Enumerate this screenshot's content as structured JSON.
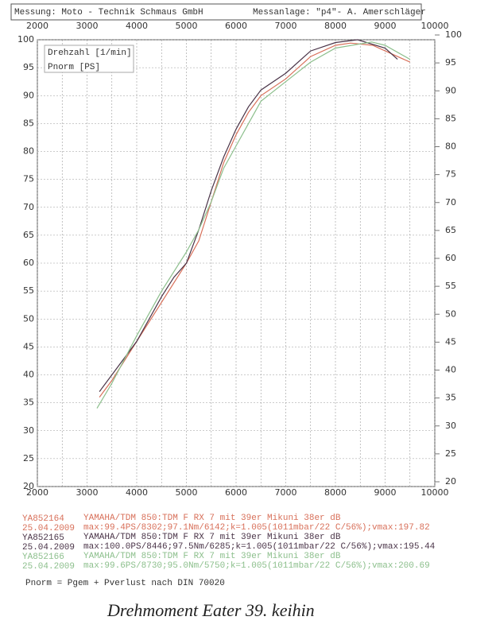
{
  "chart_data": {
    "type": "line",
    "header_left": "Messung: Moto - Technik Schmaus GmbH",
    "header_right": "Messanlage: \"p4\"- A. Amerschläger",
    "x_label": "Drehzahl [1/min]",
    "y_label": "Pnorm [PS]",
    "xlim": [
      2000,
      10000
    ],
    "xticks": [
      2000,
      3000,
      4000,
      5000,
      6000,
      7000,
      8000,
      9000,
      10000
    ],
    "ylim": [
      20,
      100
    ],
    "yticks": [
      20,
      25,
      30,
      35,
      40,
      45,
      50,
      55,
      60,
      65,
      70,
      75,
      80,
      85,
      90,
      95,
      100
    ],
    "y2lim": [
      20,
      100
    ],
    "y2ticks": [
      20,
      25,
      30,
      35,
      40,
      45,
      50,
      55,
      60,
      65,
      70,
      75,
      80,
      85,
      90,
      95,
      100
    ],
    "grid": true,
    "series": [
      {
        "name": "YA852164",
        "date": "25.04.2009",
        "color": "#d8705a",
        "description": "YAMAHA/TDM  850:TDM F RX 7 mit 39er Mikuni 38er dB",
        "stats": "max:99.4PS/8302;97.1Nm/6142;k=1.005(1011mbar/22 C/56%);vmax:197.82",
        "x": [
          3250,
          3500,
          4000,
          4500,
          5000,
          5250,
          5500,
          5750,
          6000,
          6250,
          6500,
          7000,
          7500,
          8000,
          8302,
          8750,
          9250,
          9500
        ],
        "values": [
          36,
          39,
          46,
          53,
          60,
          64,
          71,
          78,
          83,
          87,
          90,
          93,
          97,
          99,
          99.4,
          99,
          97,
          96
        ]
      },
      {
        "name": "YA852165",
        "date": "25.04.2009",
        "color": "#4a3448",
        "description": "YAMAHA/TDM  850:TDM F RX 7 mit 39er Mikuni 38er dB",
        "stats": "max:100.0PS/8446;97.5Nm/6285;k=1.005(1011mbar/22 C/56%);vmax:195.44",
        "x": [
          3250,
          3500,
          4000,
          4500,
          4750,
          5000,
          5250,
          5500,
          5750,
          6000,
          6250,
          6500,
          7000,
          7500,
          8000,
          8446,
          9000,
          9250
        ],
        "values": [
          37,
          40,
          46,
          54,
          57.5,
          60,
          66,
          73,
          79,
          84,
          88,
          91,
          94,
          98,
          99.5,
          100,
          98.5,
          96.5
        ]
      },
      {
        "name": "YA852166",
        "date": "25.04.2009",
        "color": "#8cbf8c",
        "description": "YAMAHA/TDM  850:TDM F RX 7 mit 39er Mikuni 38er dB",
        "stats": "max:99.6PS/8730;95.0Nm/5750;k=1.005(1011mbar/22 C/56%);vmax:200.69",
        "x": [
          3200,
          3500,
          4000,
          4500,
          5000,
          5250,
          5500,
          5750,
          6000,
          6250,
          6500,
          7000,
          7500,
          8000,
          8730,
          9000,
          9500
        ],
        "values": [
          34,
          38.5,
          47,
          55,
          62,
          66,
          71,
          77,
          81,
          85,
          89,
          92.5,
          96,
          98.5,
          99.6,
          99,
          96.5
        ]
      }
    ],
    "footnote": "Pnorm = Pgem + Pverlust nach DIN 70020",
    "handwritten_note": "Drehmoment Eater 39. keihin"
  }
}
